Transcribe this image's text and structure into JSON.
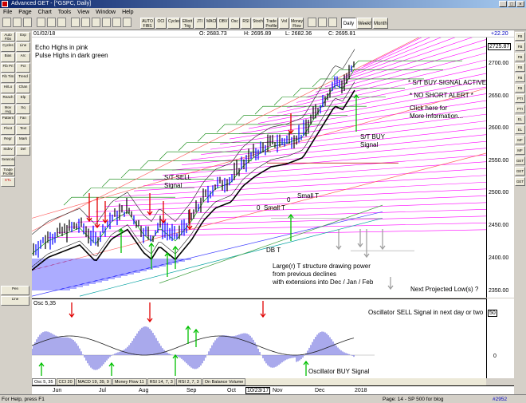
{
  "window": {
    "title": "Advanced GET - [^GSPC, Daily]",
    "buttons": [
      "_",
      "□",
      "×"
    ]
  },
  "menu": [
    "File",
    "Page",
    "Chart",
    "Tools",
    "View",
    "Window",
    "Help"
  ],
  "toolbar": {
    "buttons": [
      "AUTO FIBS",
      "OCI",
      "Cycles",
      "Elliott Trig",
      "JTI",
      "MACD",
      "OBV",
      "Osc",
      "RSI",
      "Stoch",
      "Trade Profile",
      "Vol",
      "Money Flow"
    ],
    "periods": [
      "Daily",
      "Weekly",
      "Monthly"
    ],
    "active_period": "Daily"
  },
  "left_tools": {
    "col1": [
      "Auto Fibs",
      "Cycles",
      "Bias",
      "Fib Pri",
      "Fib Tim",
      "Hi/Lo",
      "Reach",
      "Mov Avg",
      "Pattern",
      "Pivot",
      "Regr",
      "Stdev",
      "Seasonal",
      "Trade Profile",
      "XTL"
    ],
    "col2": [
      "Exp",
      "Line",
      "Arc",
      "Pct",
      "Trend",
      "Chan",
      "Elp",
      "Sq",
      "Fan",
      "Text",
      "Mark",
      "Del"
    ],
    "pen_label": "Pen",
    "line_label": "Line"
  },
  "right_tools": [
    "FB",
    "FB",
    "FB",
    "FB",
    "FB",
    "FB",
    "PTI",
    "PTI",
    "EL",
    "EL",
    "MF",
    "MF",
    "GET",
    "GET",
    "GET"
  ],
  "price_bar": {
    "date": "01/02/18",
    "open": "O: 2683.73",
    "high": "H: 2695.89",
    "low": "L: 2682.36",
    "close": "C: 2695.81",
    "change": "+22.20"
  },
  "price_axis": {
    "ticks": [
      "2725.87",
      "2700.00",
      "2650.00",
      "2600.00",
      "2550.00",
      "2500.00",
      "2450.00",
      "2400.00",
      "2350.00"
    ],
    "ticks_value": [
      2725.87,
      2700,
      2650,
      2600,
      2550,
      2500,
      2450,
      2400,
      2350
    ]
  },
  "osc": {
    "label": "Osc 5,35",
    "level": "50",
    "zero": "0"
  },
  "tabs": [
    "Osc 5, 35",
    "CCI 20",
    "MACD 19, 39, 9",
    "Money Flow 11",
    "RSI 14, 7, 3",
    "RSI 2, 7, 3",
    "On Balance Volume"
  ],
  "active_tab": "Osc 5, 35",
  "months": [
    "Jun",
    "Jul",
    "Aug",
    "Sep",
    "Oct",
    "10/23/17",
    "Nov",
    "Dec",
    "2018"
  ],
  "status": {
    "help": "For Help, press F1",
    "page": "Page: 14 - SP 500 for blog",
    "count": "#2952"
  },
  "annotations": {
    "echo": "Echo Highs in pink",
    "pulse": "Pulse Highs in dark green",
    "st_buy_active": "* S/T BUY SIGNAL ACTIVE *",
    "no_short": "* NO SHORT ALERT *",
    "click1": "Click here for",
    "click2": "More Information...",
    "st_buy1": "S/T BUY",
    "st_buy2": "Signal",
    "st_sell1": "S/T SELL",
    "st_sell2": "Signal",
    "small_t1": "Small T",
    "small_t2": "Small  T",
    "zero1": "0",
    "zero2": "0",
    "db": "DB T",
    "large1": "Large(r) T structure drawing power",
    "large2": "from previous declines",
    "large3": "with extensions into Dec / Jan / Feb",
    "next_low": "Next Projected Low(s) ?",
    "osc_sell": "Oscillator SELL  Signal in next day or two",
    "osc_buy": "Oscillator BUY Signal"
  },
  "colors": {
    "up": "#0000ff",
    "down": "#000000",
    "ma_black": "#000000",
    "echo": "#ff00ff",
    "pulse": "#008000",
    "arrow_red": "#e00000",
    "arrow_green": "#00c000",
    "band": "#ff6060",
    "osc_bar": "#7070e0"
  }
}
